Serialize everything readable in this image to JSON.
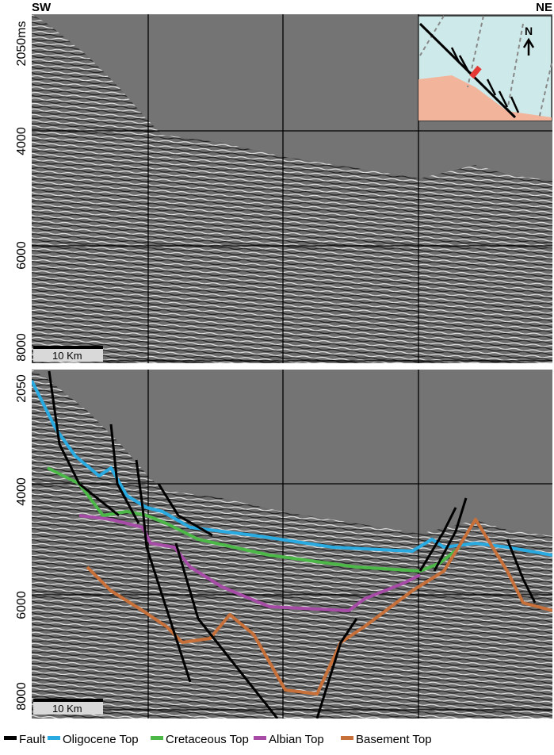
{
  "header": {
    "left": "SW",
    "right": "NE"
  },
  "top_panel": {
    "depth_labels": [
      "2050ms",
      "4000",
      "6000",
      "8000"
    ],
    "scale_bar": "10 Km",
    "inset_north": "N"
  },
  "bottom_panel": {
    "depth_labels": [
      "2050",
      "4000",
      "6000",
      "8000"
    ],
    "scale_bar": "10 Km"
  },
  "legend": [
    {
      "label": "Fault",
      "color": "#000000"
    },
    {
      "label": "Oligocene Top",
      "color": "#29aae1"
    },
    {
      "label": "Cretaceous Top",
      "color": "#4cb848"
    },
    {
      "label": "Albian Top",
      "color": "#a64ca6"
    },
    {
      "label": "Basement Top",
      "color": "#c8703a"
    }
  ]
}
